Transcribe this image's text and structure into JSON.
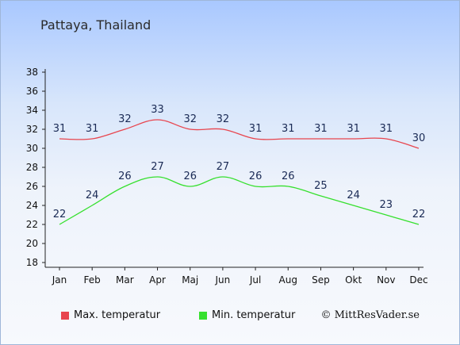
{
  "chart_data": {
    "type": "line",
    "title": "Pattaya, Thailand",
    "categories": [
      "Jan",
      "Feb",
      "Mar",
      "Apr",
      "Maj",
      "Jun",
      "Jul",
      "Aug",
      "Sep",
      "Okt",
      "Nov",
      "Dec"
    ],
    "series": [
      {
        "name": "Max. temperatur",
        "color": "#e8454e",
        "values": [
          31,
          31,
          32,
          33,
          32,
          32,
          31,
          31,
          31,
          31,
          31,
          30
        ]
      },
      {
        "name": "Min. temperatur",
        "color": "#36e02e",
        "values": [
          22,
          24,
          26,
          27,
          26,
          27,
          26,
          26,
          25,
          24,
          23,
          22
        ]
      }
    ],
    "yticks": [
      18,
      20,
      22,
      24,
      26,
      28,
      30,
      32,
      34,
      36,
      38
    ],
    "ylim": [
      18,
      38
    ],
    "legend": "bottom-left",
    "grid": false
  },
  "credit": "© MittResVader.se"
}
